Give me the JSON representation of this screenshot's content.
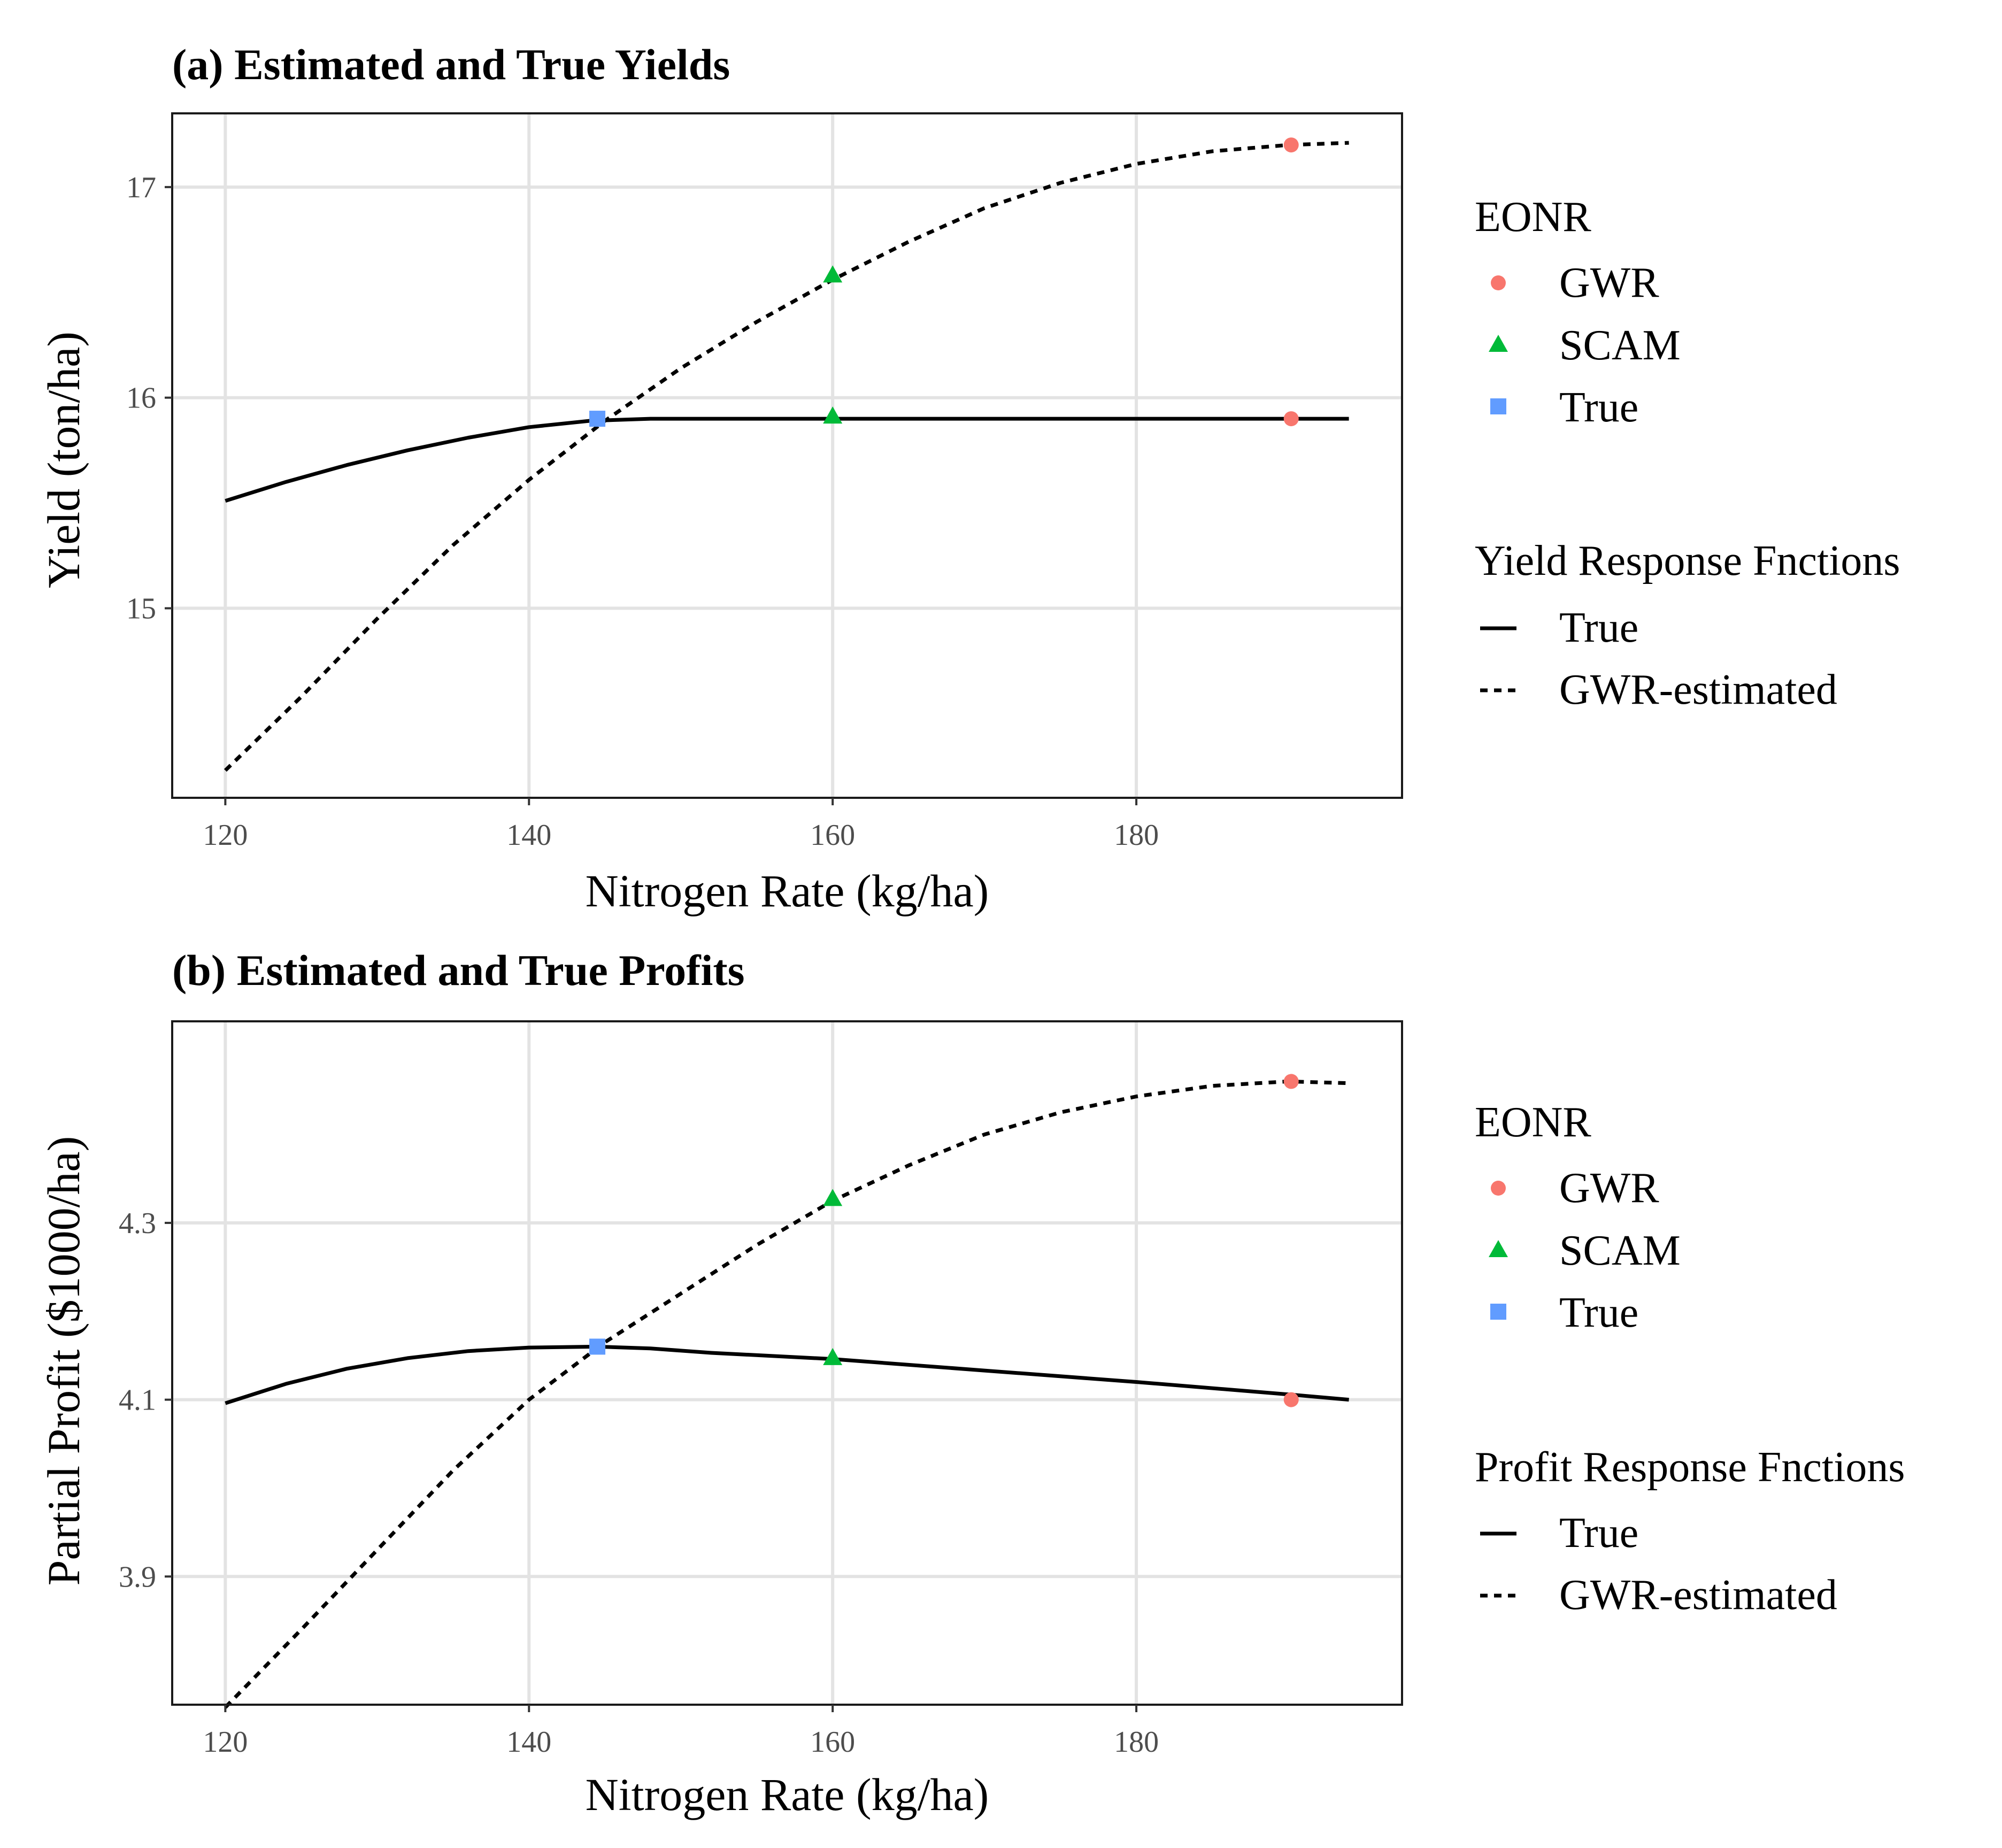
{
  "chart_data": [
    {
      "type": "line",
      "title": "(a) Estimated and True Yields",
      "xlabel": "Nitrogen Rate (kg/ha)",
      "ylabel": "Yield (ton/ha)",
      "xlim": [
        116.5,
        197.5
      ],
      "ylim": [
        14.1,
        17.35
      ],
      "xticks": [
        120,
        140,
        160,
        180
      ],
      "yticks": [
        15,
        16,
        17
      ],
      "grid": true,
      "legend_position": "right",
      "series": [
        {
          "name": "True",
          "style": "solid",
          "x": [
            120,
            124,
            128,
            132,
            136,
            140,
            144,
            148,
            152,
            160,
            170,
            180,
            190,
            194
          ],
          "y": [
            15.51,
            15.6,
            15.68,
            15.75,
            15.81,
            15.86,
            15.89,
            15.9,
            15.9,
            15.9,
            15.9,
            15.9,
            15.9,
            15.9
          ]
        },
        {
          "name": "GWR-estimated",
          "style": "dashed",
          "x": [
            120,
            125,
            130,
            135,
            140,
            145,
            150,
            155,
            160,
            165,
            170,
            175,
            180,
            185,
            190,
            194
          ],
          "y": [
            14.23,
            14.58,
            14.95,
            15.3,
            15.61,
            15.89,
            16.14,
            16.36,
            16.56,
            16.74,
            16.9,
            17.02,
            17.11,
            17.17,
            17.2,
            17.21
          ]
        }
      ],
      "points": [
        {
          "group": "GWR",
          "x": 190.2,
          "y": 17.2
        },
        {
          "group": "SCAM",
          "x": 160,
          "y": 16.58
        },
        {
          "group": "True",
          "x": 144.5,
          "y": 15.9
        },
        {
          "group": "SCAM",
          "x": 160,
          "y": 15.91
        },
        {
          "group": "GWR",
          "x": 190.2,
          "y": 15.9
        }
      ],
      "legend_eonr_title": "EONR",
      "legend_lines_title": "Yield Response Fnctions"
    },
    {
      "type": "line",
      "title": "(b) Estimated and True Profits",
      "xlabel": "Nitrogen Rate (kg/ha)",
      "ylabel": "Partial Profit ($1000/ha)",
      "xlim": [
        116.5,
        197.5
      ],
      "ylim": [
        3.755,
        4.528
      ],
      "xticks": [
        120,
        140,
        160,
        180
      ],
      "yticks": [
        3.9,
        4.1,
        4.3
      ],
      "grid": true,
      "legend_position": "right",
      "series": [
        {
          "name": "True",
          "style": "solid",
          "x": [
            120,
            124,
            128,
            132,
            136,
            140,
            144.5,
            148,
            152,
            160,
            170,
            180,
            190,
            194
          ],
          "y": [
            4.096,
            4.118,
            4.135,
            4.147,
            4.155,
            4.159,
            4.16,
            4.158,
            4.153,
            4.146,
            4.133,
            4.12,
            4.106,
            4.1
          ]
        },
        {
          "name": "GWR-estimated",
          "style": "dashed",
          "x": [
            120,
            125,
            130,
            135,
            140,
            145,
            150,
            155,
            160,
            165,
            170,
            175,
            180,
            185,
            190,
            194
          ],
          "y": [
            3.752,
            3.84,
            3.93,
            4.02,
            4.1,
            4.165,
            4.22,
            4.275,
            4.325,
            4.365,
            4.4,
            4.425,
            4.443,
            4.455,
            4.46,
            4.458
          ]
        }
      ],
      "points": [
        {
          "group": "GWR",
          "x": 190.2,
          "y": 4.46
        },
        {
          "group": "SCAM",
          "x": 160,
          "y": 4.327
        },
        {
          "group": "True",
          "x": 144.5,
          "y": 4.16
        },
        {
          "group": "SCAM",
          "x": 160,
          "y": 4.147
        },
        {
          "group": "GWR",
          "x": 190.2,
          "y": 4.1
        }
      ],
      "legend_eonr_title": "EONR",
      "legend_lines_title": "Profit Response Fnctions"
    }
  ],
  "legend_items": {
    "eonr": [
      "GWR",
      "SCAM",
      "True"
    ],
    "lines": [
      "True",
      "GWR-estimated"
    ]
  },
  "colors": {
    "GWR": "#F8766D",
    "SCAM": "#00BA38",
    "True": "#619CFF",
    "line": "#000000",
    "grid": "#E3E3E3"
  }
}
